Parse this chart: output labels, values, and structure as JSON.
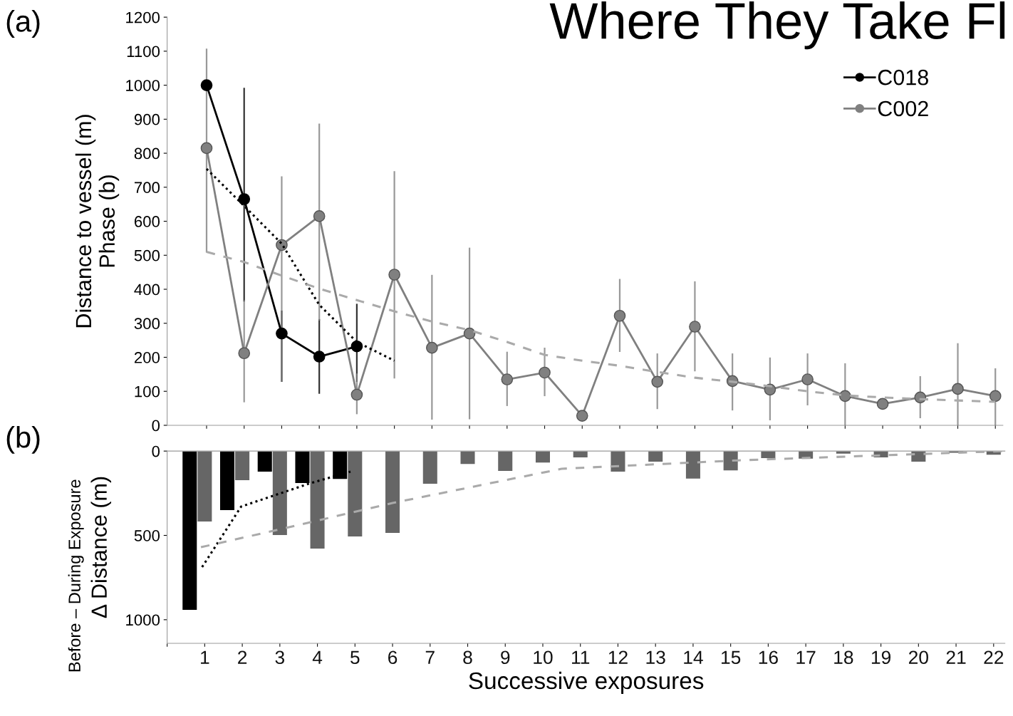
{
  "chart_data": [
    {
      "type": "line",
      "title": "Where They Take Fl",
      "ylabel": "Distance to vessel (m)\nPhase (b)",
      "annotations": [
        "(a)"
      ],
      "categories": [
        null,
        null,
        null,
        null,
        null,
        null,
        null,
        null,
        null,
        null,
        null,
        null,
        null,
        null,
        null,
        null,
        null,
        null,
        null,
        null,
        null,
        null
      ],
      "ylim": [
        0,
        1200
      ],
      "yticks": [
        0,
        100,
        200,
        300,
        400,
        500,
        600,
        700,
        800,
        900,
        1000,
        1100,
        1200
      ],
      "grid": false,
      "legend": "top right",
      "tick_labels": "y",
      "series": [
        {
          "name": "C018",
          "color": "#000000",
          "marker": "circle",
          "line_style": "solid",
          "values": [
            1000,
            665,
            270,
            202,
            232,
            null,
            null,
            null,
            null,
            null,
            null,
            null,
            null,
            null,
            null,
            null,
            null,
            null,
            null,
            null,
            null,
            null
          ],
          "errors": [
            null,
            [
              366,
              990
            ],
            [
              130,
              335
            ],
            [
              95,
              310
            ],
            [
              130,
              355
            ],
            null,
            null,
            null,
            null,
            null,
            null,
            null,
            null,
            null,
            null,
            null,
            null,
            null,
            null,
            null,
            null,
            null
          ]
        },
        {
          "name": "C002",
          "color": "#808080",
          "marker": "circle",
          "line_style": "solid",
          "values": [
            815,
            212,
            530,
            615,
            90,
            443,
            228,
            270,
            135,
            155,
            28,
            322,
            128,
            290,
            130,
            105,
            135,
            86,
            63,
            82,
            107,
            86
          ],
          "errors": [
            [
              510,
              1105
            ],
            [
              70,
              366
            ],
            [
              130,
              730
            ],
            [
              310,
              885
            ],
            [
              35,
              150
            ],
            [
              140,
              745
            ],
            [
              19,
              440
            ],
            [
              20,
              520
            ],
            [
              59,
              214
            ],
            [
              88,
              226
            ],
            null,
            [
              218,
              428
            ],
            [
              50,
              209
            ],
            [
              161,
              421
            ],
            [
              46,
              209
            ],
            [
              17,
              197
            ],
            [
              61,
              209
            ],
            [
              0,
              180
            ],
            null,
            [
              23,
              142
            ],
            [
              0,
              239
            ],
            [
              0,
              165
            ]
          ]
        },
        {
          "color": "#000000",
          "marker": "none",
          "line_style": "dotted",
          "values": [
            754,
            645,
            534,
            354,
            245,
            190,
            null,
            null,
            null,
            null,
            null,
            null,
            null,
            null,
            null,
            null,
            null,
            null,
            null,
            null,
            null,
            null
          ]
        },
        {
          "color": "#aaaaaa",
          "marker": "none",
          "line_style": "dashed",
          "values": [
            510,
            480,
            440,
            402,
            368,
            335,
            305,
            280,
            245,
            207,
            190,
            175,
            157,
            140,
            128,
            115,
            100,
            88,
            82,
            77,
            73,
            69
          ]
        }
      ]
    },
    {
      "type": "bar",
      "ylabel": "Δ Distance (m)",
      "xlabel": "Successive exposures",
      "annotations": [
        "(b)",
        "Before – During Exposure"
      ],
      "x": [
        1,
        2,
        3,
        4,
        5,
        6,
        7,
        8,
        9,
        10,
        11,
        12,
        13,
        14,
        15,
        16,
        17,
        18,
        19,
        20,
        21,
        22
      ],
      "xlim": [
        0,
        22.3
      ],
      "xticks": [
        {
          "value": 0,
          "label": null
        },
        1,
        2,
        3,
        4,
        5,
        6,
        7,
        8,
        9,
        10,
        11,
        12,
        13,
        14,
        15,
        16,
        17,
        18,
        19,
        20,
        21,
        22
      ],
      "ylim": [
        1140,
        0
      ],
      "yticks": [
        0,
        500,
        1000
      ],
      "grid": false,
      "series": [
        {
          "color": "#000000",
          "x": [
            1,
            2,
            3,
            4,
            5
          ],
          "values": [
            941,
            350,
            122,
            190,
            165
          ]
        },
        {
          "color": "#666666",
          "values": [
            418,
            173,
            498,
            578,
            506,
            485,
            194,
            76,
            118,
            68,
            37,
            122,
            63,
            163,
            114,
            42,
            45,
            15,
            37,
            63,
            10,
            22
          ]
        },
        {
          "type": "line",
          "color": "#000000",
          "line_style": "dotted",
          "x": [
            0.93,
            1.97,
            3.82,
            4.88
          ],
          "values": [
            688,
            329,
            190,
            122
          ]
        },
        {
          "type": "line",
          "color": "#aaaaaa",
          "line_style": "dashed",
          "x": [
            0.9,
            3,
            6,
            10.5,
            15.2,
            22.3
          ],
          "values": [
            570,
            464,
            308,
            105,
            55,
            0
          ]
        }
      ]
    }
  ]
}
